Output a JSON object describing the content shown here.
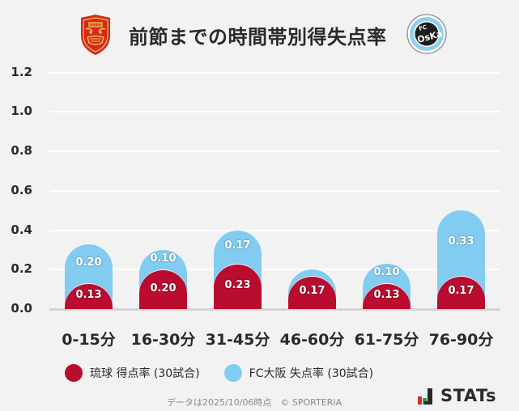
{
  "header": {
    "title": "前節までの時間帯別得失点率",
    "left_logo": "ryukyu-crest-icon",
    "right_logo": "fc-osaka-crest-icon"
  },
  "colors": {
    "background": "#f2f2f2",
    "ryukyu_red": "#b90c2e",
    "osaka_blue": "#82ccf2",
    "grid": "#ffffff",
    "text": "#2a2a2a"
  },
  "legend": {
    "items": [
      {
        "label": "琉球 得点率 (30試合)",
        "color": "#b90c2e"
      },
      {
        "label": "FC大阪 失点率 (30試合)",
        "color": "#82ccf2"
      }
    ]
  },
  "footer": {
    "note": "データは2025/10/06時点　© SPORTERIA",
    "brand": "STATs"
  },
  "chart_data": {
    "type": "bar",
    "stacked": true,
    "title": "前節までの時間帯別得失点率",
    "xlabel": "",
    "ylabel": "",
    "ylim": [
      0,
      1.2
    ],
    "yticks": [
      "0.0",
      "0.2",
      "0.4",
      "0.6",
      "0.8",
      "1.0",
      "1.2"
    ],
    "grid": true,
    "legend_position": "bottom",
    "categories": [
      "0-15分",
      "16-30分",
      "31-45分",
      "46-60分",
      "61-75分",
      "76-90分"
    ],
    "series": [
      {
        "name": "琉球 得点率 (30試合)",
        "color": "#b90c2e",
        "values": [
          0.13,
          0.2,
          0.23,
          0.17,
          0.13,
          0.17
        ],
        "labels": [
          "0.13",
          "0.20",
          "0.23",
          "0.17",
          "0.13",
          "0.17"
        ]
      },
      {
        "name": "FC大阪 失点率 (30試合)",
        "color": "#82ccf2",
        "values": [
          0.2,
          0.1,
          0.17,
          0.03,
          0.1,
          0.33
        ],
        "labels": [
          "0.20",
          "0.10",
          "0.17",
          "",
          "0.10",
          "0.33"
        ]
      }
    ]
  }
}
